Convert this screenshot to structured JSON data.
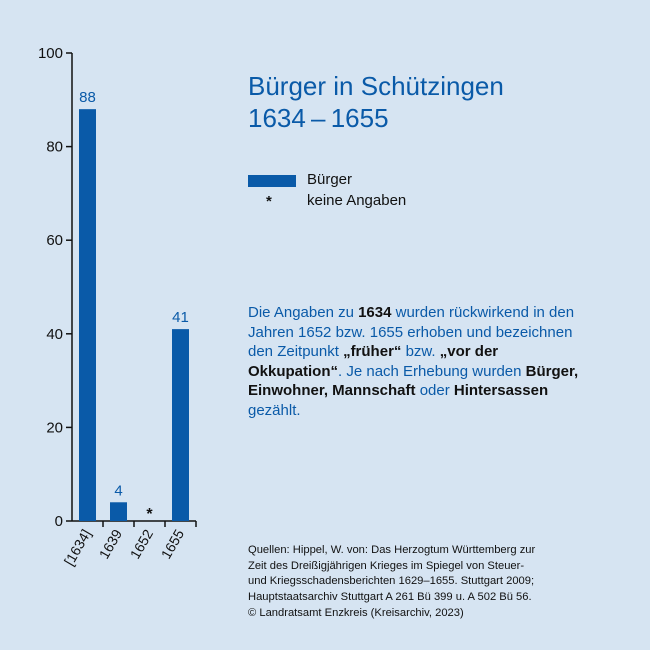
{
  "chart_data": {
    "type": "bar",
    "title_lines": [
      "Bürger in Schützingen",
      "1634 – 1655"
    ],
    "categories": [
      "[1634]",
      "1639",
      "1652",
      "1655"
    ],
    "values": [
      88,
      4,
      null,
      41
    ],
    "data_labels": [
      "88",
      "4",
      "*",
      "41"
    ],
    "ylim": [
      0,
      100
    ],
    "yticks": [
      0,
      20,
      40,
      60,
      80,
      100
    ],
    "bar_color": "#0a5aa8",
    "legend": {
      "series_name": "Bürger",
      "missing_symbol": "*",
      "missing_label": "keine Angaben",
      "placement": "right"
    },
    "grid": false
  },
  "description": [
    {
      "t": "Die Angaben zu ",
      "b": false
    },
    {
      "t": "1634",
      "b": true
    },
    {
      "t": " wurden rückwirkend in den Jahren 1652 bzw. 1655 erhoben und bezeichnen den Zeitpunkt ",
      "b": false
    },
    {
      "t": "„früher“",
      "b": true
    },
    {
      "t": " bzw. ",
      "b": false
    },
    {
      "t": "„vor der Okkupation“",
      "b": true
    },
    {
      "t": ". Je nach Erhebung wurden ",
      "b": false
    },
    {
      "t": "Bürger, Einwohner, Mannschaft",
      "b": true
    },
    {
      "t": " oder ",
      "b": false
    },
    {
      "t": "Hintersassen",
      "b": true
    },
    {
      "t": " gezählt.",
      "b": false
    }
  ],
  "sources": [
    "Quellen: Hippel, W. von: Das Herzogtum Württemberg zur",
    "Zeit des Dreißigjährigen Krieges im Spiegel von Steuer-",
    "und Kriegsschadensberichten 1629–1655. Stuttgart 2009;",
    "Hauptstaatsarchiv Stuttgart A 261 Bü 399 u. A 502 Bü 56.",
    "© Landratsamt Enzkreis (Kreisarchiv, 2023)"
  ],
  "colors": {
    "background": "#d6e4f2",
    "accent": "#0a5aa8",
    "text": "#111111"
  }
}
